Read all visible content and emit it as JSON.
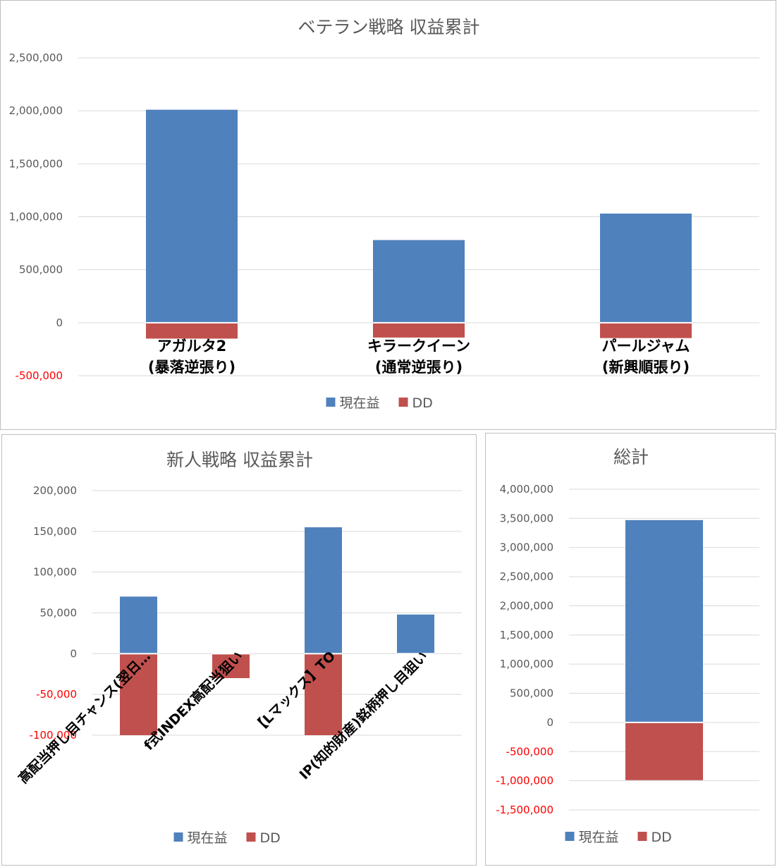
{
  "chart_data": [
    {
      "type": "bar",
      "stacked": true,
      "title": "ベテラン戦略 収益累計",
      "categories": [
        [
          "アガルタ2",
          "(暴落逆張り)"
        ],
        [
          "キラークイーン",
          "(通常逆張り)"
        ],
        [
          "パールジャム",
          "(新興順張り)"
        ]
      ],
      "series": [
        {
          "name": "現在益",
          "color": "#4f81bd",
          "values": [
            2010000,
            780000,
            1030000
          ]
        },
        {
          "name": "DD",
          "color": "#c0504d",
          "values": [
            -150000,
            -140000,
            -145000
          ]
        }
      ],
      "ylim": [
        -500000,
        2500000
      ],
      "yticks": [
        "2,500,000",
        "2,000,000",
        "1,500,000",
        "1,000,000",
        "500,000",
        "0",
        "-500,000"
      ],
      "negative_tick_color": "#ff0000",
      "grid": true,
      "legend": "bottom"
    },
    {
      "type": "bar",
      "stacked": true,
      "title": "新人戦略 収益累計",
      "categories": [
        "高配当押し目チャンス(翌日…",
        "f式INDEX高配当狙い",
        "【Lマックス】TO",
        "IP(知的財産)銘柄押し目狙い"
      ],
      "series": [
        {
          "name": "現在益",
          "color": "#4f81bd",
          "values": [
            70000,
            0,
            155000,
            48000
          ]
        },
        {
          "name": "DD",
          "color": "#c0504d",
          "values": [
            -100000,
            -30000,
            -100000,
            0
          ]
        }
      ],
      "ylim": [
        -100000,
        200000
      ],
      "yticks": [
        "200,000",
        "150,000",
        "100,000",
        "50,000",
        "0",
        "-50,000",
        "-100,000"
      ],
      "negative_tick_color": "#ff0000",
      "grid": true,
      "legend": "bottom"
    },
    {
      "type": "bar",
      "stacked": true,
      "title": "総計",
      "categories": [
        ""
      ],
      "series": [
        {
          "name": "現在益",
          "color": "#4f81bd",
          "values": [
            3470000
          ]
        },
        {
          "name": "DD",
          "color": "#c0504d",
          "values": [
            -990000
          ]
        }
      ],
      "ylim": [
        -1500000,
        4000000
      ],
      "yticks": [
        "4,000,000",
        "3,500,000",
        "3,000,000",
        "2,500,000",
        "2,000,000",
        "1,500,000",
        "1,000,000",
        "500,000",
        "0",
        "-500,000",
        "-1,000,000",
        "-1,500,000"
      ],
      "negative_tick_color": "#ff0000",
      "grid": true,
      "legend": "bottom"
    }
  ]
}
